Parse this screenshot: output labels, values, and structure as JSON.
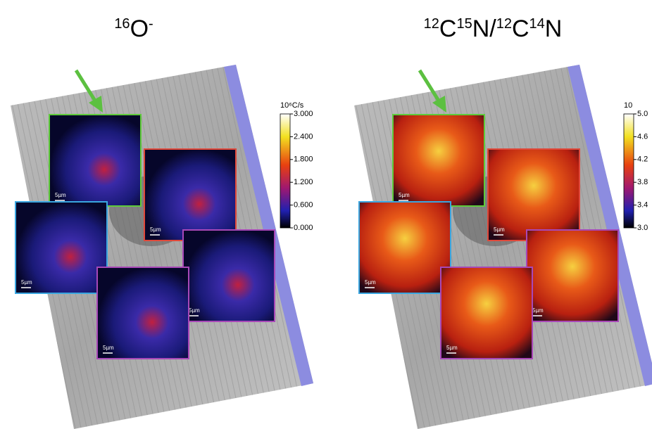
{
  "panels": [
    {
      "title": [
        {
          "text": "16",
          "sup": true
        },
        {
          "text": "O",
          "sup": false
        },
        {
          "text": "-",
          "sup": true
        }
      ],
      "colorbar": {
        "unit": "10⁶C/s",
        "ticks": [
          "3.000",
          "2.400",
          "1.800",
          "1.200",
          "0.600",
          "0.000"
        ]
      },
      "scale_labels": [
        "5µm",
        "5µm",
        "5µm",
        "5µm",
        "5µm"
      ]
    },
    {
      "title": [
        {
          "text": "12",
          "sup": true
        },
        {
          "text": "C",
          "sup": false
        },
        {
          "text": "15",
          "sup": true
        },
        {
          "text": "N/",
          "sup": false
        },
        {
          "text": "12",
          "sup": true
        },
        {
          "text": "C",
          "sup": false
        },
        {
          "text": "14",
          "sup": true
        },
        {
          "text": "N",
          "sup": false
        }
      ],
      "colorbar": {
        "unit": "10",
        "ticks": [
          "5.0",
          "4.6",
          "4.2",
          "3.8",
          "3.4",
          "3.0"
        ]
      },
      "scale_labels": [
        "5µm",
        "5µm",
        "5µm",
        "5µm",
        "5µm"
      ]
    }
  ]
}
